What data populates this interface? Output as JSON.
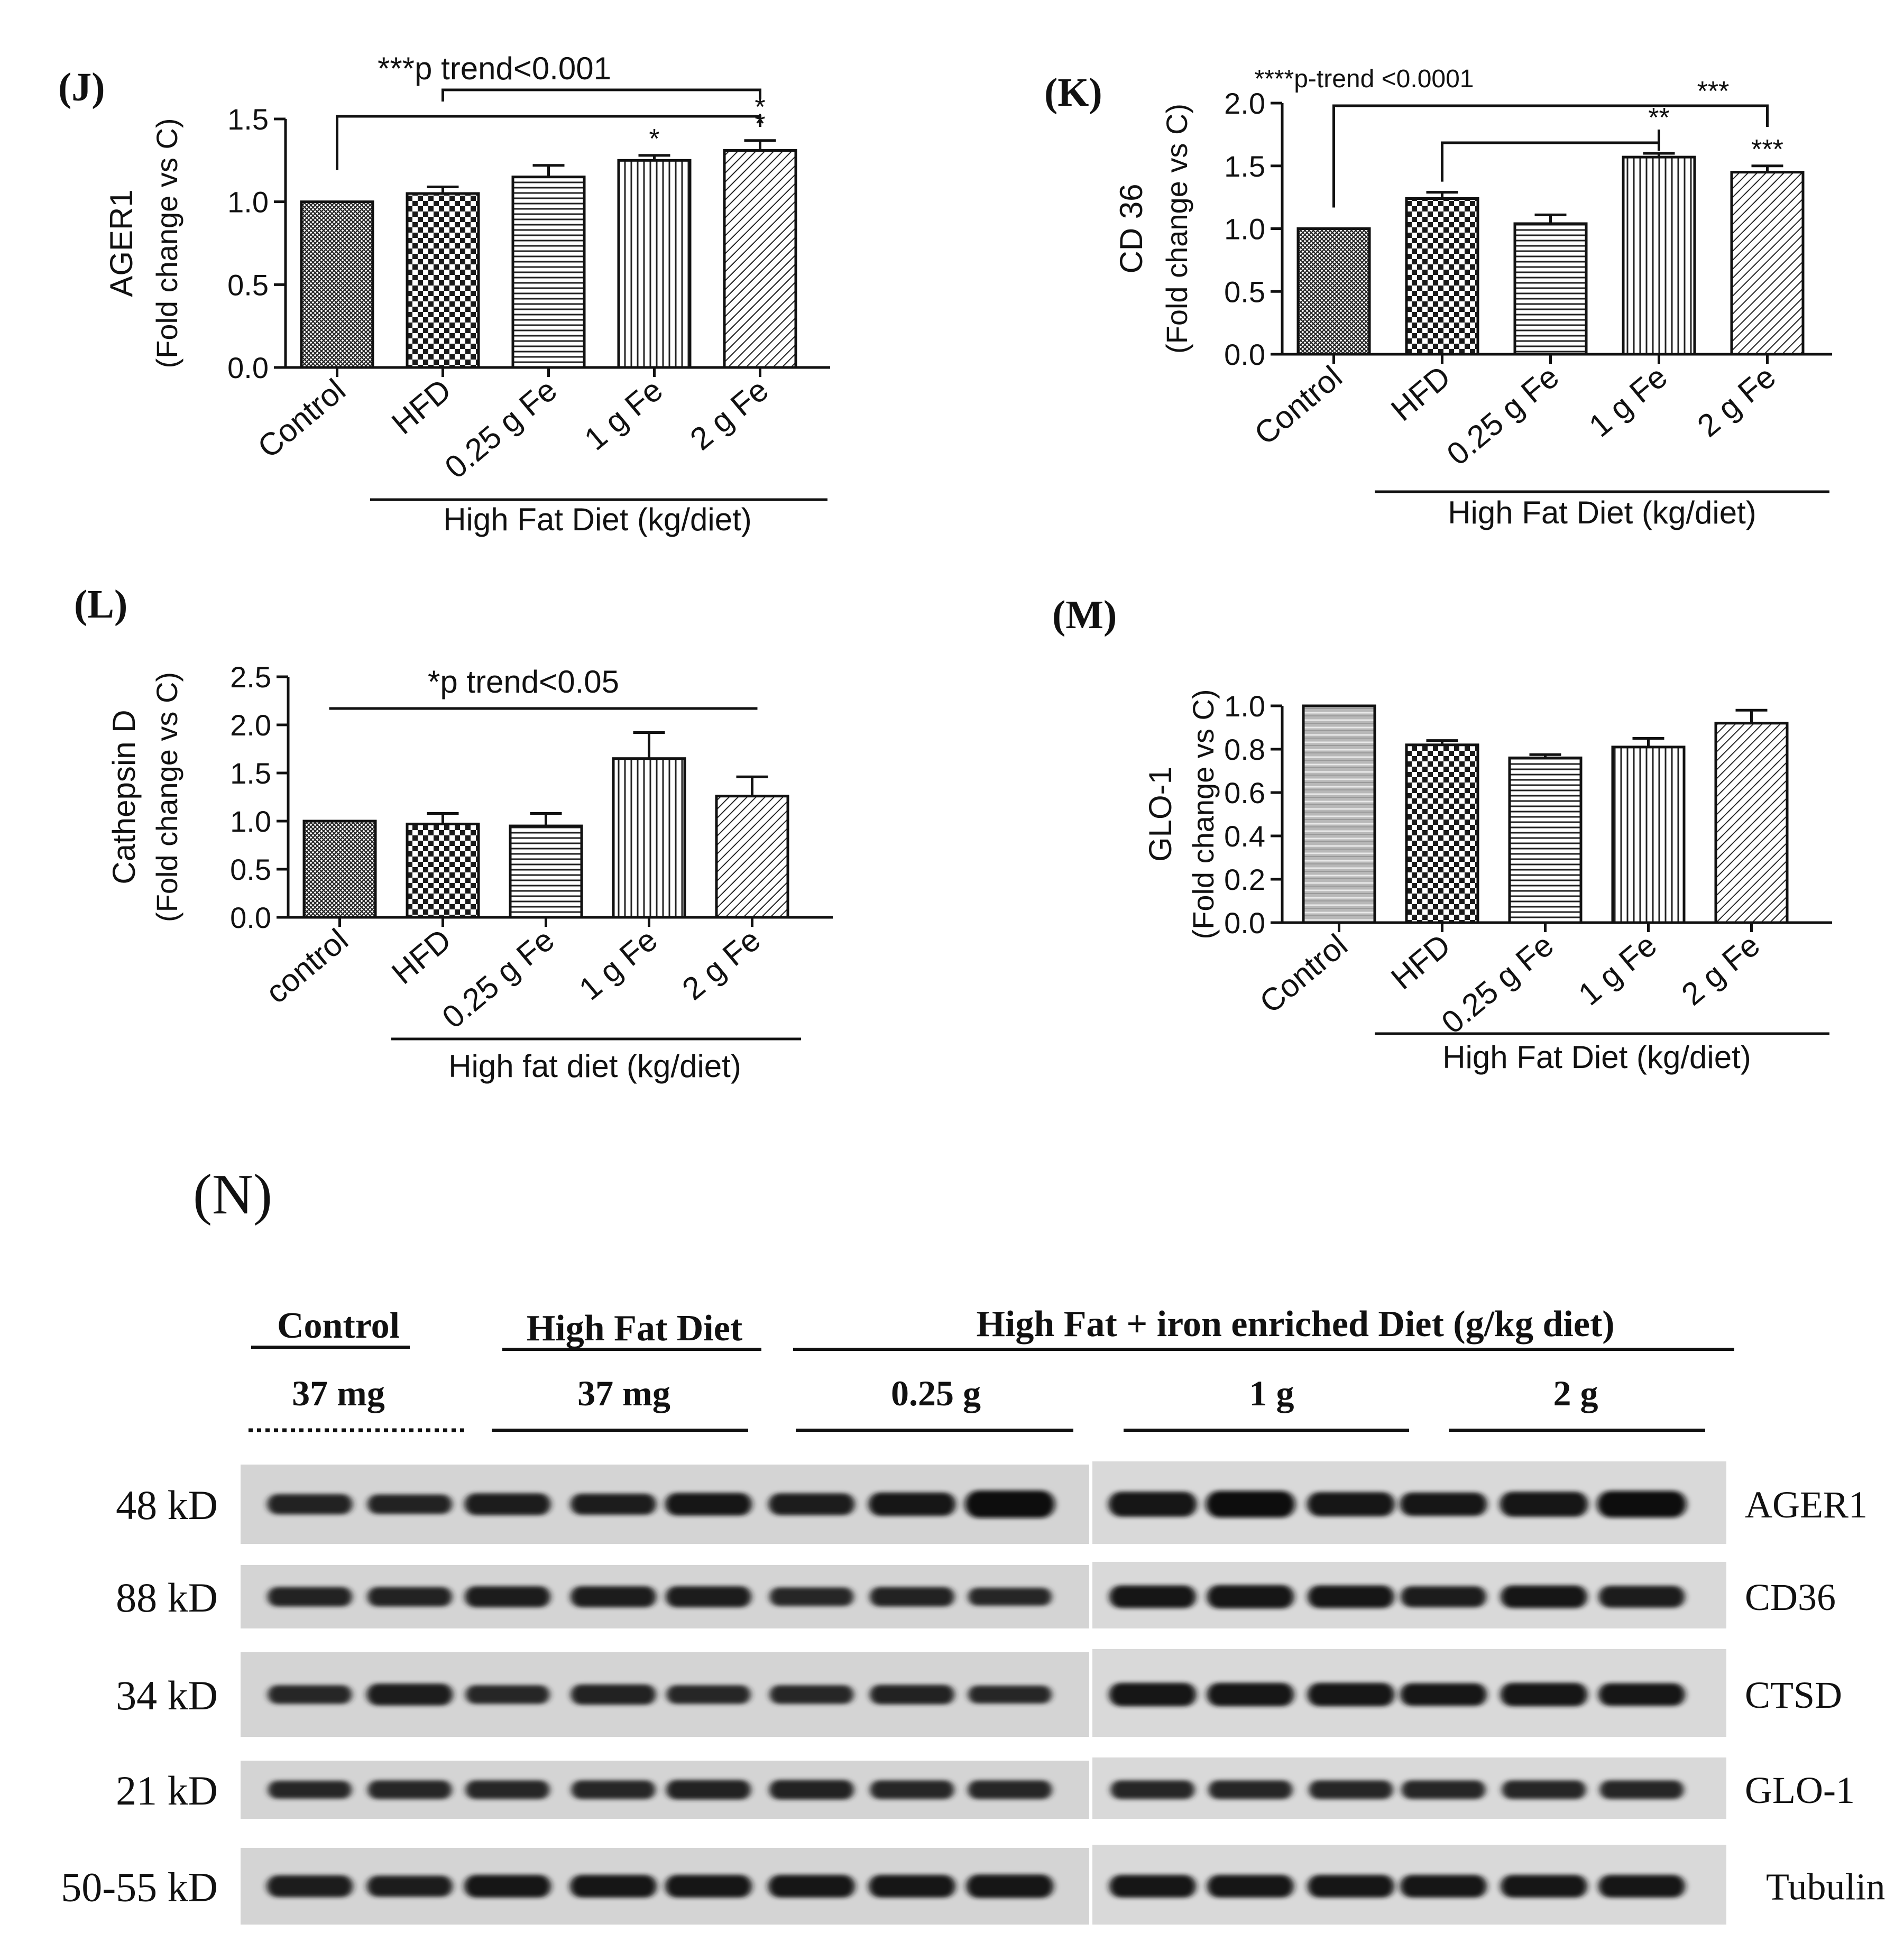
{
  "panel_labels": {
    "J": "(J)",
    "K": "(K)",
    "L": "(L)",
    "M": "(M)",
    "N": "(N)"
  },
  "chart_data": [
    {
      "id": "J",
      "type": "bar",
      "ylabel_line1": "AGER1",
      "ylabel_line2": "(Fold change vs C)",
      "ylim": [
        0,
        1.5
      ],
      "yticks": [
        0.0,
        0.5,
        1.0,
        1.5
      ],
      "ytick_labels": [
        "0.0",
        "0.5",
        "1.0",
        "1.5"
      ],
      "categories": [
        "Control",
        "HFD",
        "0.25 g Fe",
        "1 g Fe",
        "2 g Fe"
      ],
      "values": [
        1.0,
        1.05,
        1.15,
        1.25,
        1.31
      ],
      "errors": [
        0.0,
        0.04,
        0.07,
        0.03,
        0.06
      ],
      "patterns": [
        "crosshatch",
        "checker",
        "horizontal",
        "vertical",
        "diagonal"
      ],
      "bar_labels": [
        "",
        "",
        "",
        "*",
        "*"
      ],
      "group_label": "High Fat Diet (kg/diet)",
      "trend_label": "***p trend<0.001",
      "bracket_labels": [
        "*"
      ]
    },
    {
      "id": "K",
      "type": "bar",
      "ylabel_line1": "CD 36",
      "ylabel_line2": "(Fold change vs C)",
      "ylim": [
        0,
        2.0
      ],
      "yticks": [
        0.0,
        0.5,
        1.0,
        1.5,
        2.0
      ],
      "ytick_labels": [
        "0.0",
        "0.5",
        "1.0",
        "1.5",
        "2.0"
      ],
      "categories": [
        "Control",
        "HFD",
        "0.25 g Fe",
        "1 g Fe",
        "2 g Fe"
      ],
      "values": [
        1.0,
        1.24,
        1.04,
        1.57,
        1.45
      ],
      "errors": [
        0.0,
        0.05,
        0.07,
        0.03,
        0.05
      ],
      "patterns": [
        "crosshatch",
        "checker",
        "horizontal",
        "vertical",
        "diagonal"
      ],
      "bar_labels": [
        "",
        "",
        "",
        "",
        "***"
      ],
      "group_label": "High Fat Diet (kg/diet)",
      "trend_label": "****p-trend <0.0001",
      "bracket_labels": [
        "***",
        "**"
      ]
    },
    {
      "id": "L",
      "type": "bar",
      "ylabel_line1": "Cathepsin D",
      "ylabel_line2": "(Fold change vs C)",
      "ylim": [
        0,
        2.5
      ],
      "yticks": [
        0.0,
        0.5,
        1.0,
        1.5,
        2.0,
        2.5
      ],
      "ytick_labels": [
        "0.0",
        "0.5",
        "1.0",
        "1.5",
        "2.0",
        "2.5"
      ],
      "categories": [
        "control",
        "HFD",
        "0.25 g Fe",
        "1 g Fe",
        "2 g Fe"
      ],
      "values": [
        1.0,
        0.97,
        0.95,
        1.65,
        1.26
      ],
      "errors": [
        0.0,
        0.11,
        0.13,
        0.27,
        0.2
      ],
      "patterns": [
        "crosshatch",
        "checker",
        "horizontal",
        "vertical",
        "diagonal"
      ],
      "bar_labels": [
        "",
        "",
        "",
        "",
        ""
      ],
      "group_label": "High fat diet (kg/diet)",
      "trend_label": "*p trend<0.05",
      "bracket_labels": []
    },
    {
      "id": "M",
      "type": "bar",
      "ylabel_line1": "GLO-1",
      "ylabel_line2": "(Fold change vs C)",
      "ylim": [
        0,
        1.0
      ],
      "yticks": [
        0.0,
        0.2,
        0.4,
        0.6,
        0.8,
        1.0
      ],
      "ytick_labels": [
        "0.0",
        "0.2",
        "0.4",
        "0.6",
        "0.8",
        "1.0"
      ],
      "categories": [
        "Control",
        "HFD",
        "0.25 g Fe",
        "1 g Fe",
        "2 g Fe"
      ],
      "values": [
        1.0,
        0.82,
        0.76,
        0.81,
        0.92
      ],
      "errors": [
        0.0,
        0.02,
        0.015,
        0.04,
        0.06
      ],
      "patterns": [
        "noise",
        "checker",
        "horizontal",
        "vertical",
        "diagonal"
      ],
      "bar_labels": [
        "",
        "",
        "",
        "",
        ""
      ],
      "group_label": "High Fat Diet (kg/diet)",
      "trend_label": "",
      "bracket_labels": []
    }
  ],
  "blot": {
    "header": {
      "control": "Control",
      "hfd": "High Fat Diet",
      "iron": "High Fat + iron enriched Diet (g/kg diet)"
    },
    "doses": [
      "37 mg",
      "37 mg",
      "0.25 g",
      "1 g",
      "2 g"
    ],
    "rows": [
      {
        "mw": "48 kD",
        "protein": "AGER1"
      },
      {
        "mw": "88 kD",
        "protein": "CD36"
      },
      {
        "mw": "34 kD",
        "protein": "CTSD"
      },
      {
        "mw": "21 kD",
        "protein": "GLO-1"
      },
      {
        "mw": "50-55 kD",
        "protein": "Tubulin"
      }
    ],
    "lanes": 14,
    "band_intensity": [
      [
        0.55,
        0.5,
        0.65,
        0.6,
        0.7,
        0.65,
        0.75,
        1.0,
        0.85,
        0.95,
        0.8,
        0.75,
        0.85,
        0.95
      ],
      [
        0.5,
        0.5,
        0.6,
        0.6,
        0.6,
        0.45,
        0.5,
        0.4,
        0.7,
        0.75,
        0.7,
        0.6,
        0.7,
        0.65
      ],
      [
        0.45,
        0.65,
        0.45,
        0.55,
        0.45,
        0.45,
        0.5,
        0.4,
        0.75,
        0.75,
        0.75,
        0.7,
        0.75,
        0.7
      ],
      [
        0.4,
        0.45,
        0.45,
        0.45,
        0.5,
        0.5,
        0.45,
        0.45,
        0.45,
        0.45,
        0.45,
        0.45,
        0.45,
        0.45
      ],
      [
        0.65,
        0.6,
        0.7,
        0.7,
        0.7,
        0.7,
        0.7,
        0.75,
        0.7,
        0.7,
        0.7,
        0.7,
        0.7,
        0.7
      ]
    ]
  }
}
